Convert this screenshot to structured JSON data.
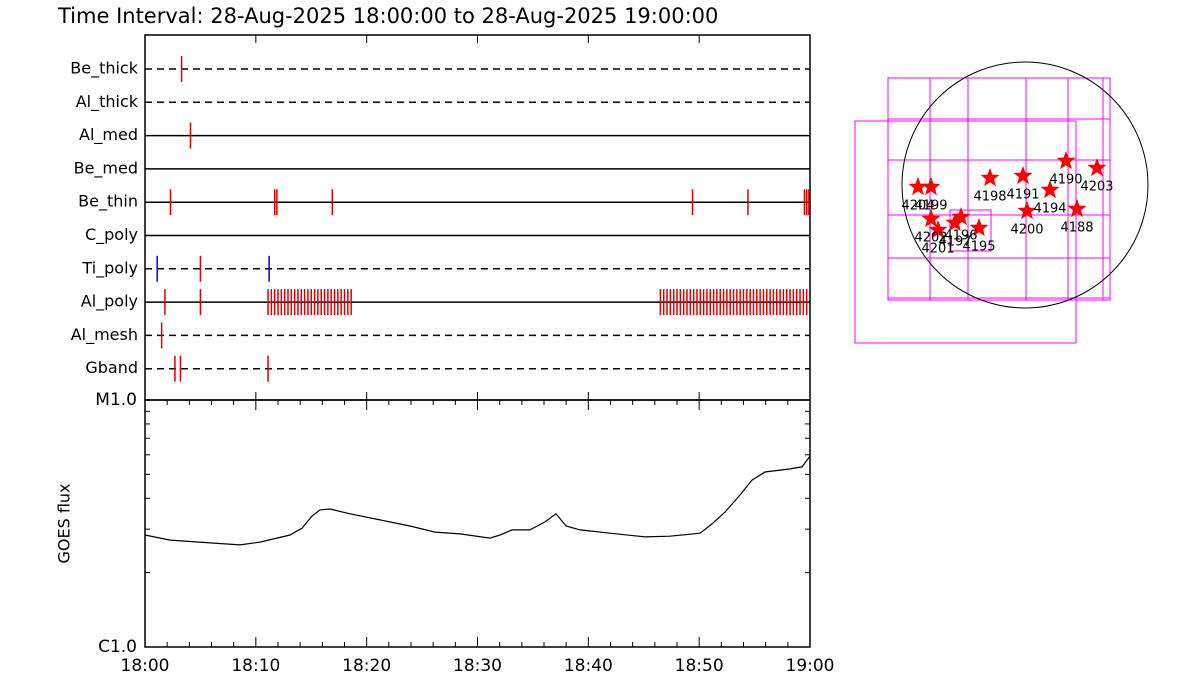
{
  "chart_data": [
    {
      "type": "timeline",
      "title": "Time Interval: 28-Aug-2025 18:00:00 to 28-Aug-2025 19:00:00",
      "xlim": [
        0,
        60
      ],
      "xticks": [
        0,
        10,
        20,
        30,
        40,
        50,
        60
      ],
      "event_color": "#e00000",
      "alt_color": "#0000e0",
      "rows": [
        {
          "name": "Be_thick",
          "line": "dashed",
          "events": [
            3.3
          ]
        },
        {
          "name": "Al_thick",
          "line": "dashed",
          "events": []
        },
        {
          "name": "Al_med",
          "line": "solid",
          "events": [
            4.1
          ]
        },
        {
          "name": "Be_med",
          "line": "solid",
          "events": []
        },
        {
          "name": "Be_thin",
          "line": "solid",
          "events": [
            2.3,
            11.7,
            11.9,
            16.9,
            49.4,
            54.4,
            59.5,
            59.7,
            59.9
          ]
        },
        {
          "name": "C_poly",
          "line": "solid",
          "events": []
        },
        {
          "name": "Ti_poly",
          "line": "dashed",
          "events": [
            5.0
          ],
          "alt_events": [
            1.1,
            11.2
          ]
        },
        {
          "name": "Al_poly",
          "line": "solid",
          "events": [
            1.8,
            5.0,
            11.1,
            11.4,
            11.7,
            12.0,
            12.3,
            12.6,
            12.9,
            13.2,
            13.5,
            13.8,
            14.1,
            14.4,
            14.7,
            15.0,
            15.3,
            15.6,
            15.9,
            16.2,
            16.5,
            16.8,
            17.1,
            17.4,
            17.7,
            18.0,
            18.3,
            18.6,
            46.5,
            46.8,
            47.1,
            47.4,
            47.7,
            48.0,
            48.3,
            48.6,
            48.9,
            49.2,
            49.5,
            49.8,
            50.1,
            50.4,
            50.7,
            51.0,
            51.3,
            51.6,
            51.9,
            52.2,
            52.5,
            52.8,
            53.1,
            53.4,
            53.7,
            54.0,
            54.3,
            54.6,
            54.9,
            55.2,
            55.5,
            55.8,
            56.1,
            56.4,
            56.7,
            57.0,
            57.3,
            57.6,
            57.9,
            58.2,
            58.5,
            58.8,
            59.1,
            59.4,
            59.7
          ]
        },
        {
          "name": "Al_mesh",
          "line": "dashed",
          "events": [
            1.5
          ]
        },
        {
          "name": "Gband",
          "line": "dashed",
          "events": [
            2.7,
            3.2,
            11.1
          ]
        }
      ]
    },
    {
      "type": "line",
      "ylabel": "GOES flux",
      "log_y": true,
      "color": "#000000",
      "xlim": [
        0,
        60
      ],
      "xticks": [
        {
          "value": 0,
          "label": "18:00"
        },
        {
          "value": 10,
          "label": "18:10"
        },
        {
          "value": 20,
          "label": "18:20"
        },
        {
          "value": 30,
          "label": "18:30"
        },
        {
          "value": 40,
          "label": "18:40"
        },
        {
          "value": 50,
          "label": "18:50"
        },
        {
          "value": 60,
          "label": "19:00"
        }
      ],
      "ylim": [
        1e-06,
        1e-05
      ],
      "yticks": [
        {
          "value": 1e-06,
          "label": "C1.0"
        },
        {
          "value": 1e-05,
          "label": "M1.0"
        }
      ],
      "yminor": [
        2e-06,
        3e-06,
        4e-06,
        5e-06,
        6e-06,
        7e-06,
        8e-06,
        9e-06
      ],
      "x": [
        0,
        2.26,
        5.87,
        8.57,
        10.38,
        13.08,
        14.17,
        15.07,
        15.79,
        16.69,
        18.5,
        21.2,
        23.91,
        26.17,
        28.42,
        31.13,
        32.03,
        33.11,
        34.74,
        36.09,
        37.08,
        37.99,
        39.25,
        41.96,
        45.12,
        47.37,
        50.08,
        51.16,
        52.34,
        53.69,
        54.77,
        55.94,
        58.2,
        59.28,
        60
      ],
      "values": [
        2.84e-06,
        2.71e-06,
        2.64e-06,
        2.59e-06,
        2.66e-06,
        2.84e-06,
        3.03e-06,
        3.39e-06,
        3.59e-06,
        3.62e-06,
        3.46e-06,
        3.27e-06,
        3.09e-06,
        2.92e-06,
        2.87e-06,
        2.76e-06,
        2.84e-06,
        2.98e-06,
        2.98e-06,
        3.21e-06,
        3.46e-06,
        3.09e-06,
        2.98e-06,
        2.89e-06,
        2.79e-06,
        2.81e-06,
        2.89e-06,
        3.15e-06,
        3.52e-06,
        4.13e-06,
        4.74e-06,
        5.11e-06,
        5.26e-06,
        5.36e-06,
        5.93e-06
      ]
    },
    {
      "type": "scatter",
      "xlim": [
        -1200,
        1200
      ],
      "ylim": [
        -1200,
        1200
      ],
      "solar_radius": 984,
      "color": "#ff0000",
      "labels": [
        "4204",
        "4199",
        "4198",
        "4191",
        "4190",
        "4203",
        "4194",
        "4200",
        "4188",
        "4202",
        "4201",
        "4197",
        "4196",
        "4195"
      ],
      "x": [
        -856,
        -752,
        -280,
        -16,
        328,
        576,
        200,
        16,
        416,
        -752,
        -696,
        -560,
        -512,
        -368
      ],
      "y": [
        -16,
        -16,
        56,
        72,
        192,
        136,
        -40,
        -208,
        -192,
        -272,
        -360,
        -304,
        -256,
        -344
      ]
    }
  ]
}
